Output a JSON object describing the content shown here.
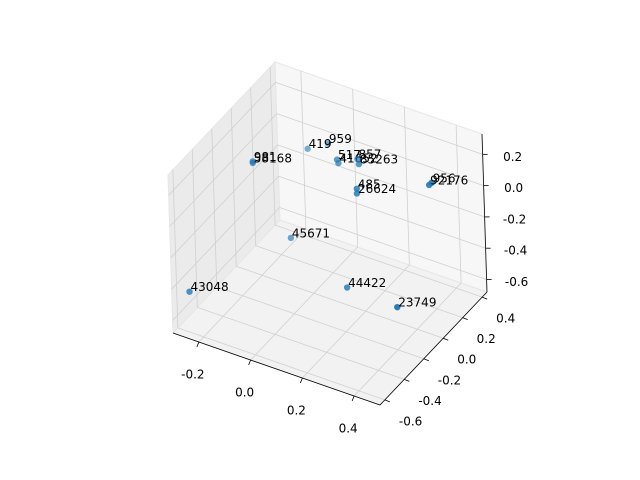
{
  "chart_data": {
    "type": "scatter3d",
    "labels": [
      "43048",
      "44422",
      "23749",
      "45671",
      "485",
      "26624",
      "956",
      "92176",
      "959",
      "419",
      "517",
      "41652",
      "857",
      "85263",
      "981",
      "58168"
    ],
    "x": [
      -0.25,
      0.17,
      0.45,
      -0.13,
      0.22,
      0.22,
      0.47,
      0.46,
      -0.06,
      -0.14,
      0.06,
      0.065,
      0.14,
      0.145,
      -0.14,
      -0.14
    ],
    "y": [
      -0.6,
      -0.1,
      -0.32,
      0.12,
      -0.1,
      -0.1,
      0.01,
      0.01,
      0.34,
      0.34,
      0.12,
      0.12,
      0.12,
      0.12,
      -0.21,
      -0.21
    ],
    "z": [
      -0.42,
      -0.48,
      -0.3,
      -0.48,
      0.18,
      0.15,
      0.29,
      0.27,
      0.02,
      -0.06,
      0.13,
      0.11,
      0.18,
      0.15,
      0.22,
      0.21
    ],
    "color": "#1f77b4",
    "xlim": [
      -0.3,
      0.5
    ],
    "ylim": [
      -0.65,
      0.45
    ],
    "zlim": [
      -0.68,
      0.33
    ],
    "xticks": [
      -0.2,
      {
        "value": 0,
        "label": "0.0"
      },
      0.2,
      0.4
    ],
    "yticks": [
      -0.6,
      -0.4,
      -0.2,
      {
        "value": 0,
        "label": "0.0"
      },
      0.2,
      0.4
    ],
    "zticks": [
      -0.6,
      -0.4,
      -0.2,
      {
        "value": 0,
        "label": "0.0"
      },
      0.2
    ],
    "grid": true
  }
}
